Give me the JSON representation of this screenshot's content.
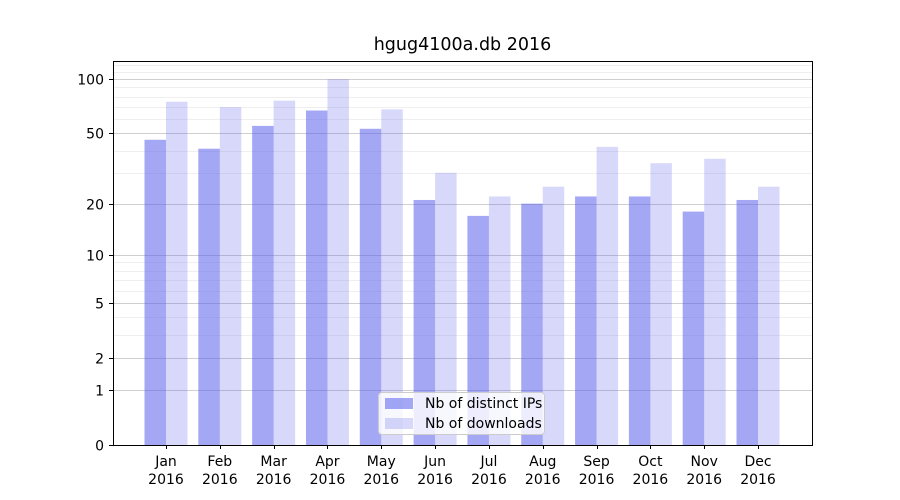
{
  "chart_data": {
    "type": "bar",
    "title": "hgug4100a.db 2016",
    "categories": [
      "Jan 2016",
      "Feb 2016",
      "Mar 2016",
      "Apr 2016",
      "May 2016",
      "Jun 2016",
      "Jul 2016",
      "Aug 2016",
      "Sep 2016",
      "Oct 2016",
      "Nov 2016",
      "Dec 2016"
    ],
    "series": [
      {
        "name": "Nb of distinct IPs",
        "values": [
          46,
          41,
          55,
          67,
          53,
          21,
          17,
          20,
          22,
          22,
          18,
          21
        ],
        "color": "rgba(90,95,235,0.55)"
      },
      {
        "name": "Nb of downloads",
        "values": [
          75,
          70,
          76,
          100,
          68,
          30,
          22,
          25,
          42,
          34,
          36,
          25
        ],
        "color": "rgba(90,95,235,0.24)"
      }
    ],
    "xlabel": "",
    "ylabel": "",
    "yscale": "log1p",
    "ylim": [
      0,
      126
    ],
    "yticks": [
      0,
      1,
      2,
      5,
      10,
      20,
      50,
      100
    ],
    "minor_gridlines": [
      3,
      4,
      6,
      7,
      8,
      9,
      30,
      40,
      60,
      70,
      80,
      90,
      110,
      120
    ],
    "grid": "horizontal",
    "legend_position": "lower-center-inside",
    "colors": {
      "major_grid": "#cfcfcf",
      "minor_grid": "#efefef",
      "spine": "#000000",
      "legend_border": "#cccccc"
    }
  }
}
